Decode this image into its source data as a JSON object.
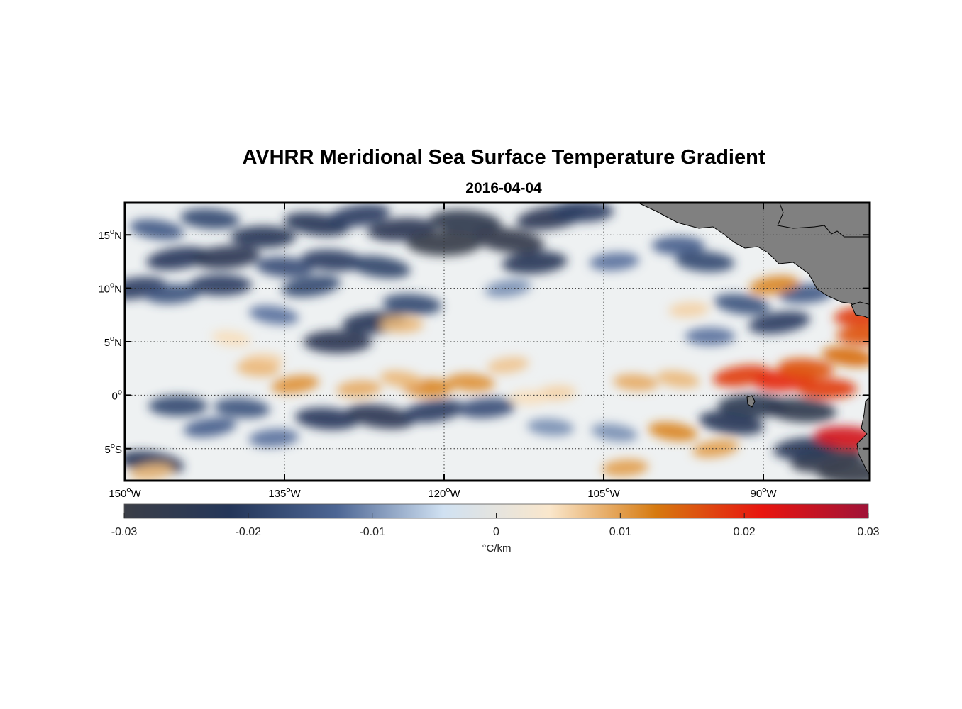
{
  "title": "AVHRR Meridional Sea Surface Temperature Gradient",
  "subtitle": "2016-04-04",
  "map": {
    "lon_range": [
      -150,
      -80
    ],
    "lat_range": [
      -8,
      18
    ],
    "lat_ticks": [
      {
        "value": 15,
        "num": "15",
        "hemi": "N"
      },
      {
        "value": 10,
        "num": "10",
        "hemi": "N"
      },
      {
        "value": 5,
        "num": "5",
        "hemi": "N"
      },
      {
        "value": 0,
        "num": "0",
        "hemi": ""
      },
      {
        "value": -5,
        "num": "5",
        "hemi": "S"
      }
    ],
    "lon_ticks": [
      {
        "value": -150,
        "num": "150",
        "hemi": "W"
      },
      {
        "value": -135,
        "num": "135",
        "hemi": "W"
      },
      {
        "value": -120,
        "num": "120",
        "hemi": "W"
      },
      {
        "value": -105,
        "num": "105",
        "hemi": "W"
      },
      {
        "value": -90,
        "num": "90",
        "hemi": "W"
      }
    ],
    "gridlines": "dotted",
    "land_color": "#808080",
    "ocean_background": "#eef1f2",
    "features": [
      {
        "lon": -145.0,
        "lat": 12.8,
        "v": -0.021
      },
      {
        "lon": -140.5,
        "lat": 12.9,
        "v": -0.024
      },
      {
        "lon": -137.0,
        "lat": 14.8,
        "v": -0.022
      },
      {
        "lon": -142.0,
        "lat": 16.5,
        "v": -0.018
      },
      {
        "lon": -147.0,
        "lat": 15.5,
        "v": -0.015
      },
      {
        "lon": -149.0,
        "lat": 10.0,
        "v": -0.02
      },
      {
        "lon": -145.5,
        "lat": 9.5,
        "v": -0.016
      },
      {
        "lon": -141.0,
        "lat": 10.3,
        "v": -0.02
      },
      {
        "lon": -135.0,
        "lat": 12.0,
        "v": -0.017
      },
      {
        "lon": -132.0,
        "lat": 16.0,
        "v": -0.022
      },
      {
        "lon": -128.0,
        "lat": 16.8,
        "v": -0.02
      },
      {
        "lon": -124.0,
        "lat": 15.5,
        "v": -0.024
      },
      {
        "lon": -120.0,
        "lat": 14.2,
        "v": -0.028
      },
      {
        "lon": -118.0,
        "lat": 16.2,
        "v": -0.026
      },
      {
        "lon": -114.0,
        "lat": 14.5,
        "v": -0.027
      },
      {
        "lon": -110.0,
        "lat": 16.6,
        "v": -0.024
      },
      {
        "lon": -111.5,
        "lat": 12.4,
        "v": -0.022
      },
      {
        "lon": -107.0,
        "lat": 17.2,
        "v": -0.02
      },
      {
        "lon": -130.5,
        "lat": 12.6,
        "v": -0.02
      },
      {
        "lon": -126.0,
        "lat": 12.0,
        "v": -0.019
      },
      {
        "lon": -132.5,
        "lat": 10.2,
        "v": -0.018
      },
      {
        "lon": -126.5,
        "lat": 6.8,
        "v": -0.022
      },
      {
        "lon": -130.0,
        "lat": 5.0,
        "v": -0.024
      },
      {
        "lon": -123.0,
        "lat": 8.5,
        "v": -0.018
      },
      {
        "lon": -136.0,
        "lat": 7.5,
        "v": -0.012
      },
      {
        "lon": -114.0,
        "lat": 10.0,
        "v": -0.01
      },
      {
        "lon": -104.0,
        "lat": 12.5,
        "v": -0.012
      },
      {
        "lon": -98.0,
        "lat": 14.0,
        "v": -0.014
      },
      {
        "lon": -95.5,
        "lat": 12.5,
        "v": -0.018
      },
      {
        "lon": -92.0,
        "lat": 8.5,
        "v": -0.016
      },
      {
        "lon": -88.5,
        "lat": 6.8,
        "v": -0.02
      },
      {
        "lon": -86.0,
        "lat": 9.5,
        "v": -0.015
      },
      {
        "lon": -95.0,
        "lat": 5.5,
        "v": -0.012
      },
      {
        "lon": -131.0,
        "lat": -2.2,
        "v": -0.021
      },
      {
        "lon": -126.0,
        "lat": -2.0,
        "v": -0.024
      },
      {
        "lon": -121.0,
        "lat": -1.5,
        "v": -0.02
      },
      {
        "lon": -116.0,
        "lat": -1.2,
        "v": -0.017
      },
      {
        "lon": -145.0,
        "lat": -1.0,
        "v": -0.018
      },
      {
        "lon": -139.0,
        "lat": -1.2,
        "v": -0.016
      },
      {
        "lon": -147.5,
        "lat": -6.3,
        "v": -0.022
      },
      {
        "lon": -142.0,
        "lat": -3.0,
        "v": -0.014
      },
      {
        "lon": -136.0,
        "lat": -4.0,
        "v": -0.012
      },
      {
        "lon": -91.0,
        "lat": -1.0,
        "v": -0.025
      },
      {
        "lon": -86.5,
        "lat": -1.4,
        "v": -0.026
      },
      {
        "lon": -93.0,
        "lat": -2.6,
        "v": -0.022
      },
      {
        "lon": -84.0,
        "lat": -6.0,
        "v": -0.027
      },
      {
        "lon": -86.0,
        "lat": -5.0,
        "v": -0.022
      },
      {
        "lon": -81.5,
        "lat": -7.2,
        "v": -0.028
      },
      {
        "lon": -110.0,
        "lat": -3.0,
        "v": -0.01
      },
      {
        "lon": -104.0,
        "lat": -3.5,
        "v": -0.01
      },
      {
        "lon": -134.0,
        "lat": 1.0,
        "v": 0.011
      },
      {
        "lon": -128.0,
        "lat": 0.6,
        "v": 0.009
      },
      {
        "lon": -121.5,
        "lat": 0.7,
        "v": 0.012
      },
      {
        "lon": -117.5,
        "lat": 1.2,
        "v": 0.011
      },
      {
        "lon": -124.0,
        "lat": 1.5,
        "v": 0.008
      },
      {
        "lon": -114.0,
        "lat": 2.8,
        "v": 0.007
      },
      {
        "lon": -109.5,
        "lat": 0.2,
        "v": 0.006
      },
      {
        "lon": -137.0,
        "lat": 3.2,
        "v": 0.006
      },
      {
        "lon": -102.0,
        "lat": 1.2,
        "v": 0.009
      },
      {
        "lon": -98.0,
        "lat": 1.5,
        "v": 0.008
      },
      {
        "lon": -92.0,
        "lat": 1.8,
        "v": 0.018
      },
      {
        "lon": -88.0,
        "lat": 1.4,
        "v": 0.02
      },
      {
        "lon": -84.0,
        "lat": 0.6,
        "v": 0.018
      },
      {
        "lon": -86.0,
        "lat": 2.5,
        "v": 0.016
      },
      {
        "lon": -82.0,
        "lat": 3.6,
        "v": 0.014
      },
      {
        "lon": -89.0,
        "lat": 10.3,
        "v": 0.012
      },
      {
        "lon": -80.6,
        "lat": 7.4,
        "v": 0.018
      },
      {
        "lon": -80.5,
        "lat": 5.6,
        "v": 0.016
      },
      {
        "lon": -82.0,
        "lat": -4.0,
        "v": 0.024
      },
      {
        "lon": -98.5,
        "lat": -3.4,
        "v": 0.012
      },
      {
        "lon": -94.5,
        "lat": -5.0,
        "v": 0.01
      },
      {
        "lon": -103.0,
        "lat": -6.8,
        "v": 0.01
      },
      {
        "lon": -124.0,
        "lat": 6.6,
        "v": 0.008
      },
      {
        "lon": -137.5,
        "lat": 2.5,
        "v": 0.008
      },
      {
        "lon": -140.0,
        "lat": 5.3,
        "v": 0.005
      },
      {
        "lon": -147.5,
        "lat": -7.2,
        "v": 0.008
      },
      {
        "lon": -97.0,
        "lat": 8.0,
        "v": 0.006
      },
      {
        "lon": -112.0,
        "lat": -0.2,
        "v": 0.005
      }
    ]
  },
  "colorbar": {
    "min": -0.03,
    "max": 0.03,
    "ticks": [
      "-0.03",
      "-0.02",
      "-0.01",
      "0",
      "0.01",
      "0.02",
      "0.03"
    ],
    "label": "°C/km",
    "stops": [
      "#3b3e47",
      "#243659",
      "#4d6694",
      "#d0e1f2",
      "#fae7cc",
      "#d67a10",
      "#e8150f",
      "#a01338"
    ]
  }
}
